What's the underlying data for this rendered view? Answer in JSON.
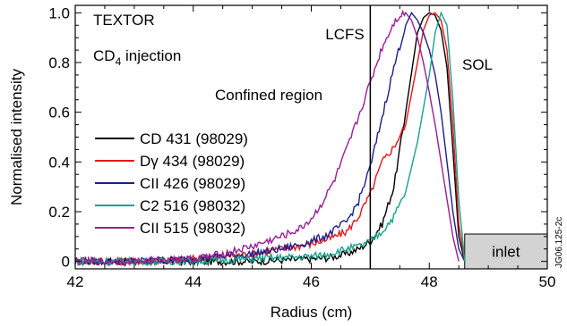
{
  "chart_data": {
    "type": "line",
    "xlabel": "Radius (cm)",
    "ylabel": "Normalised intensity",
    "xlim": [
      42,
      50
    ],
    "ylim": [
      -0.03,
      1.03
    ],
    "x_ticks": [
      "42",
      "44",
      "46",
      "48",
      "50"
    ],
    "y_ticks": [
      "0",
      "0.2",
      "0.4",
      "0.6",
      "0.8",
      "1.0"
    ],
    "x_tick_values": [
      42,
      44,
      46,
      48,
      50
    ],
    "y_tick_values": [
      0,
      0.2,
      0.4,
      0.6,
      0.8,
      1.0
    ],
    "grid": false,
    "legend_position": "left",
    "annotations": {
      "textor": "TEXTOR",
      "injection_main": "CD",
      "injection_sub": "4",
      "injection_rest": " injection",
      "lcfs": "LCFS",
      "sol": "SOL",
      "confined": "Confined region",
      "inlet": "inlet",
      "figure_id": "JG06.125-2c"
    },
    "lcfs_x": 47.0,
    "inlet_region": {
      "x_start": 48.6,
      "x_end": 50.0,
      "y_top": 0.11
    },
    "series": [
      {
        "name": "CD 431 (98029)",
        "color": "#000000",
        "x": [
          42,
          43,
          44,
          45,
          45.5,
          46,
          46.3,
          46.6,
          46.8,
          47.0,
          47.2,
          47.4,
          47.6,
          47.8,
          47.9,
          48.0,
          48.1,
          48.2,
          48.3,
          48.4,
          48.5,
          48.6
        ],
        "y": [
          0.0,
          0.0,
          0.0,
          0.0,
          0.005,
          0.01,
          0.015,
          0.03,
          0.05,
          0.08,
          0.15,
          0.3,
          0.6,
          0.92,
          0.98,
          1.0,
          0.99,
          0.93,
          0.78,
          0.45,
          0.1,
          0.0
        ]
      },
      {
        "name": "Dγ 434 (98029)",
        "color": "#e8151b",
        "x": [
          42,
          43,
          44,
          45,
          45.5,
          46,
          46.3,
          46.6,
          46.8,
          47.0,
          47.2,
          47.4,
          47.6,
          47.8,
          47.9,
          48.0,
          48.1,
          48.2,
          48.3,
          48.4,
          48.5,
          48.6
        ],
        "y": [
          0.0,
          0.0,
          0.01,
          0.03,
          0.05,
          0.07,
          0.09,
          0.12,
          0.18,
          0.27,
          0.4,
          0.46,
          0.55,
          0.8,
          0.93,
          0.99,
          1.0,
          0.97,
          0.85,
          0.55,
          0.15,
          0.0
        ]
      },
      {
        "name": "CII 426 (98029)",
        "color": "#1b1f8c",
        "x": [
          42,
          43,
          44,
          45,
          45.5,
          46,
          46.3,
          46.6,
          46.8,
          47.0,
          47.2,
          47.4,
          47.6,
          47.7,
          47.8,
          47.9,
          48.0,
          48.1,
          48.2,
          48.3,
          48.4,
          48.5,
          48.6
        ],
        "y": [
          0.0,
          0.0,
          0.01,
          0.03,
          0.05,
          0.08,
          0.11,
          0.16,
          0.24,
          0.38,
          0.58,
          0.78,
          0.95,
          1.0,
          0.97,
          0.92,
          0.85,
          0.75,
          0.6,
          0.4,
          0.2,
          0.05,
          0.0
        ]
      },
      {
        "name": "C2 516 (98032)",
        "color": "#15a38c",
        "x": [
          42,
          43,
          44,
          45,
          45.5,
          46,
          46.3,
          46.6,
          46.8,
          47.0,
          47.2,
          47.4,
          47.6,
          47.8,
          48.0,
          48.1,
          48.2,
          48.3,
          48.4,
          48.5,
          48.6
        ],
        "y": [
          0.0,
          0.0,
          0.0,
          0.01,
          0.015,
          0.02,
          0.03,
          0.05,
          0.06,
          0.08,
          0.12,
          0.18,
          0.28,
          0.48,
          0.75,
          0.92,
          1.0,
          0.95,
          0.65,
          0.25,
          0.0
        ]
      },
      {
        "name": "CII 515 (98032)",
        "color": "#9b1d96",
        "x": [
          42,
          43,
          44,
          44.5,
          45,
          45.5,
          45.8,
          46,
          46.2,
          46.4,
          46.6,
          46.8,
          47.0,
          47.2,
          47.4,
          47.5,
          47.6,
          47.7,
          47.8,
          47.9,
          48.0,
          48.1,
          48.2,
          48.3,
          48.4,
          48.5
        ],
        "y": [
          0.0,
          0.0,
          0.01,
          0.03,
          0.06,
          0.1,
          0.13,
          0.17,
          0.24,
          0.33,
          0.45,
          0.58,
          0.72,
          0.86,
          0.96,
          0.99,
          1.0,
          0.97,
          0.9,
          0.8,
          0.68,
          0.55,
          0.4,
          0.25,
          0.1,
          0.0
        ]
      }
    ]
  }
}
